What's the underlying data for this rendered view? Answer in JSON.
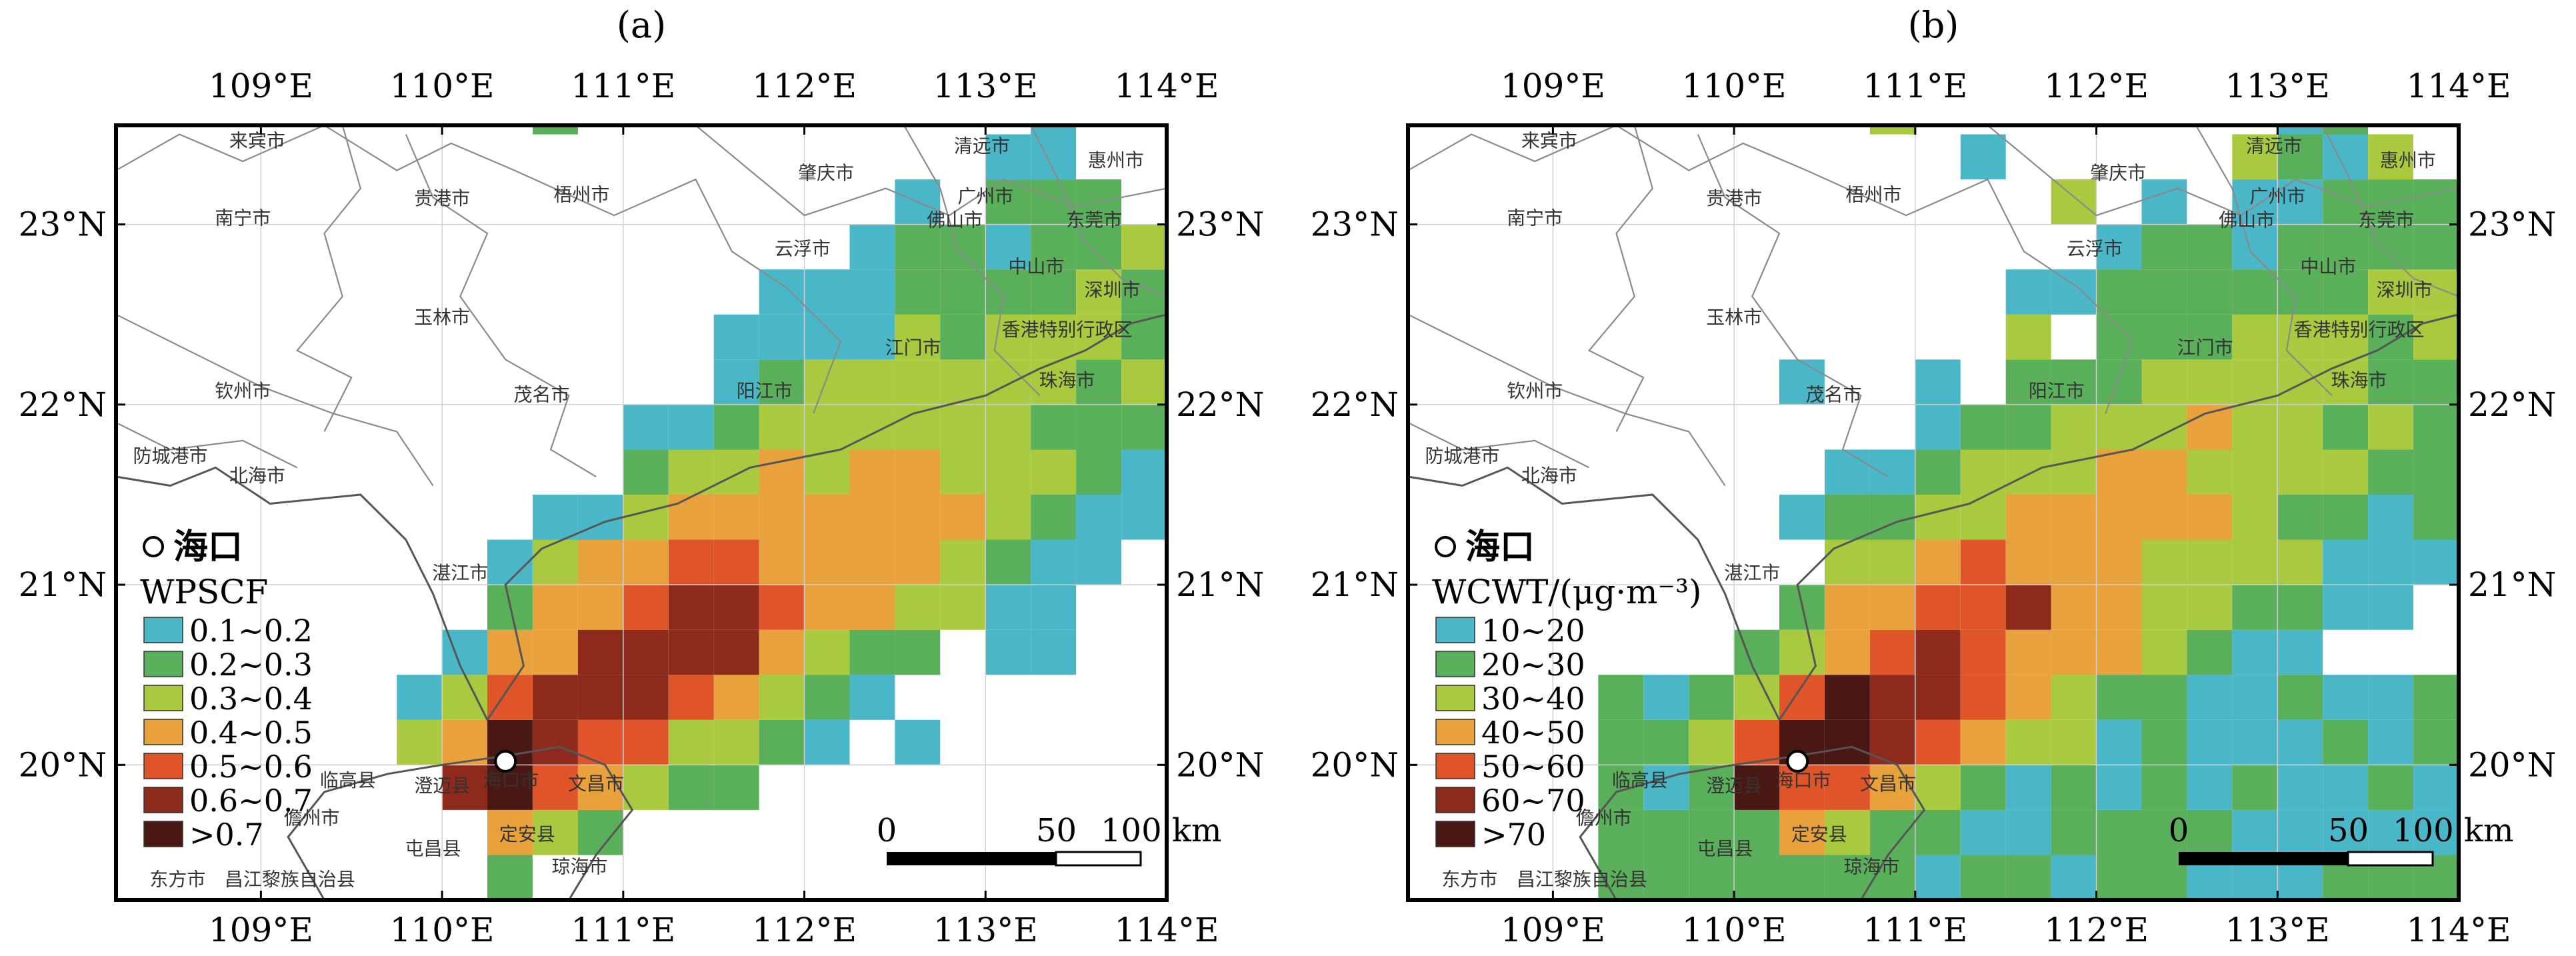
{
  "panels": [
    {
      "label": "(a)",
      "legend_title": "WPSCF",
      "legend_items": [
        "0.1~0.2",
        "0.2~0.3",
        "0.3~0.4",
        "0.4~0.5",
        "0.5~0.6",
        "0.6~0.7",
        ">0.7"
      ],
      "source_label": "海口",
      "scale_labels": [
        "0",
        "50",
        "100 km"
      ]
    },
    {
      "label": "(b)",
      "legend_title": "WCWT/(μg·m⁻³)",
      "legend_items": [
        "10~20",
        "20~30",
        "30~40",
        "40~50",
        "50~60",
        "60~70",
        ">70"
      ],
      "source_label": "海口",
      "scale_labels": [
        "0",
        "50",
        "100 km"
      ]
    }
  ],
  "colors": [
    "#4ab7c9",
    "#5aaf5a",
    "#a9c93e",
    "#e9a23b",
    "#e0542a",
    "#8e2a1c",
    "#4a1812"
  ],
  "axis": {
    "lon_labels": [
      "109°E",
      "110°E",
      "111°E",
      "112°E",
      "113°E",
      "114°E"
    ],
    "lat_labels": [
      "23°N",
      "22°N",
      "21°N",
      "20°N"
    ]
  },
  "cities": [
    "来宾市",
    "贵港市",
    "梧州市",
    "肇庆市",
    "清远市",
    "惠州市",
    "广州市",
    "南宁市",
    "佛山市",
    "东莞市",
    "云浮市",
    "中山市",
    "深圳市",
    "玉林市",
    "香港特别行政区",
    "江门市",
    "钦州市",
    "茂名市",
    "阳江市",
    "珠海市",
    "防城港市",
    "北海市",
    "湛江市",
    "临高县",
    "澄迈县",
    "海口市",
    "文昌市",
    "儋州市",
    "屯昌县",
    "定安县",
    "东方市",
    "昌江黎族自治县",
    "琼海市"
  ]
}
